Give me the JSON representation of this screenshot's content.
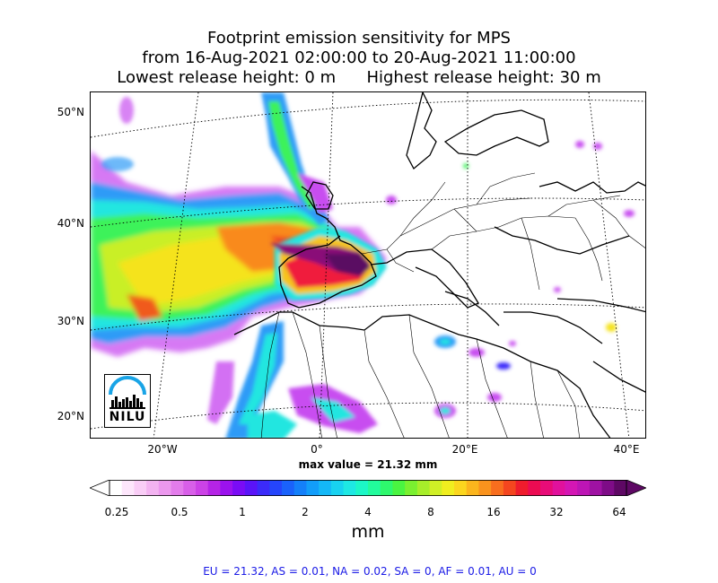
{
  "title": {
    "line1": "Footprint emission sensitivity for MPS",
    "line2": "from 16-Aug-2021 02:00:00 to 20-Aug-2021 11:00:00",
    "line3": "Lowest release height: 0 m      Highest release height: 30 m"
  },
  "map": {
    "lat_labels": [
      "50°N",
      "40°N",
      "30°N",
      "20°N"
    ],
    "lon_labels": [
      "20°W",
      "0°",
      "20°E",
      "40°E"
    ],
    "logo_text": "NILU",
    "max_value_text": "max value = 21.32 mm"
  },
  "colorbar": {
    "ticks": [
      "0.25",
      "0.5",
      "1",
      "2",
      "4",
      "8",
      "16",
      "32",
      "64"
    ],
    "unit": "mm",
    "colors": [
      "#ffffff",
      "#fde6fb",
      "#f9cdf6",
      "#f3b3f1",
      "#ec98ee",
      "#e37ceb",
      "#d85fe8",
      "#cc42e6",
      "#b524e6",
      "#9b12ee",
      "#7a0cf5",
      "#5a14f8",
      "#3b2bfa",
      "#2545fb",
      "#1a62fb",
      "#1480fa",
      "#129dfa",
      "#14b8f7",
      "#18d2f0",
      "#1ee8e3",
      "#1cf7c7",
      "#22fb9c",
      "#2ef86d",
      "#4af441",
      "#7af030",
      "#a7ee2a",
      "#d0ef26",
      "#f0ee1f",
      "#fbd61e",
      "#fbb51d",
      "#fa931d",
      "#f86e1e",
      "#f4461f",
      "#ef1c2d",
      "#ec0b52",
      "#e80c78",
      "#e1119c",
      "#d416b4",
      "#bd15b5",
      "#9f12a3",
      "#7e0c87",
      "#5e0864"
    ]
  },
  "regions_text": "EU = 21.32,  AS = 0.01,  NA = 0.02,  SA = 0,  AF = 0.01,  AU = 0"
}
